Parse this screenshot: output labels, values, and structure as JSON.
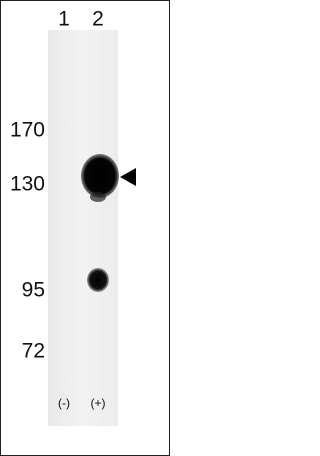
{
  "lanes": [
    "1",
    "2"
  ],
  "markers": [
    "170",
    "130",
    "95",
    "72"
  ],
  "conditions": [
    "(-)",
    "(+)"
  ]
}
